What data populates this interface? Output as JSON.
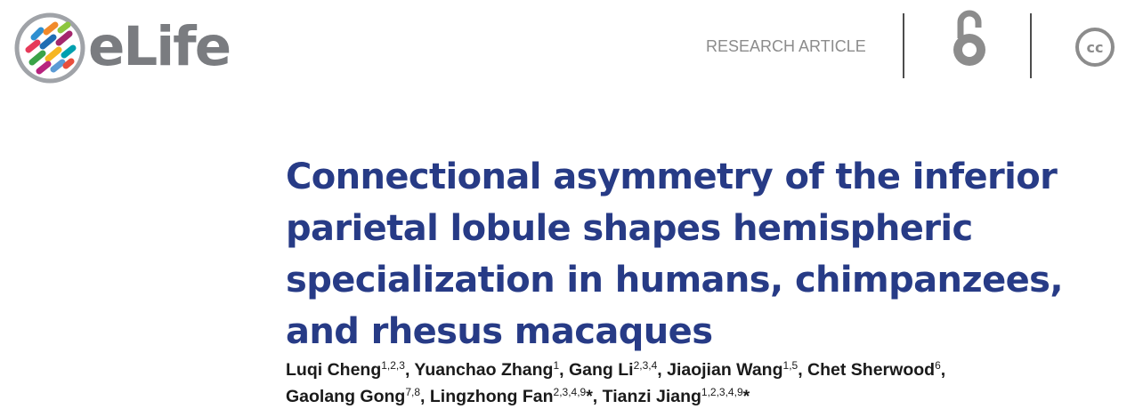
{
  "header": {
    "brand": "eLife",
    "article_type": "RESEARCH ARTICLE",
    "icons": [
      "elife-logo-icon",
      "open-access-icon",
      "creative-commons-icon"
    ],
    "colors": {
      "brand_text": "#7a7c80",
      "title": "#273b86",
      "divider": "#4d4d4d",
      "icon": "#8c8c8c"
    }
  },
  "title_lines": [
    "Connectional asymmetry of the inferior",
    "parietal lobule shapes hemispheric",
    "specialization in humans, chimpanzees,",
    "and rhesus macaques"
  ],
  "authors": [
    {
      "name": "Luqi Cheng",
      "aff": "1,2,3",
      "sep": ", "
    },
    {
      "name": "Yuanchao Zhang",
      "aff": "1",
      "sep": ", "
    },
    {
      "name": "Gang Li",
      "aff": "2,3,4",
      "sep": ", "
    },
    {
      "name": "Jiaojian Wang",
      "aff": "1,5",
      "sep": ", "
    },
    {
      "name": "Chet Sherwood",
      "aff": "6",
      "sep": ","
    },
    {
      "name": "Gaolang Gong",
      "aff": "7,8",
      "sep": ", "
    },
    {
      "name": "Lingzhong Fan",
      "aff": "2,3,4,9",
      "sep": "*, "
    },
    {
      "name": "Tianzi Jiang",
      "aff": "1,2,3,4,9",
      "sep": "*"
    }
  ]
}
